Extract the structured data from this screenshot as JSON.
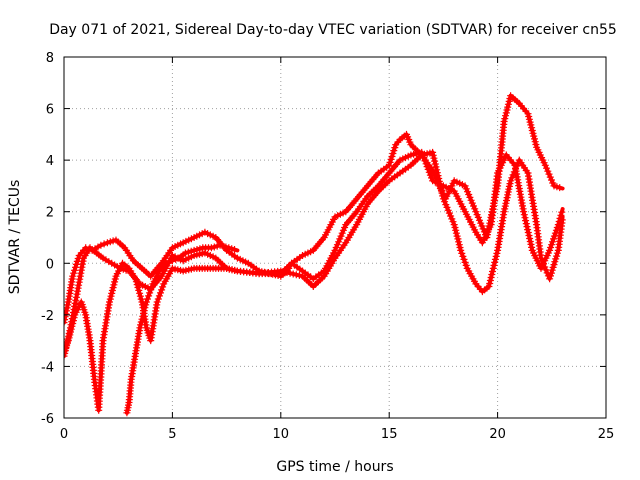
{
  "chart_data": {
    "type": "scatter",
    "title": "Day 071 of 2021, Sidereal Day-to-day VTEC variation (SDTVAR) for receiver cn55",
    "xlabel": "GPS time / hours",
    "ylabel": "SDTVAR / TECUs",
    "xlim": [
      0,
      25
    ],
    "ylim": [
      -6,
      8
    ],
    "xticks": [
      0,
      5,
      10,
      15,
      20,
      25
    ],
    "yticks": [
      -6,
      -4,
      -2,
      0,
      2,
      4,
      6,
      8
    ],
    "grid": true,
    "color": "#ff0000",
    "marker": "+",
    "series": [
      {
        "x": [
          0,
          0.2,
          0.4,
          0.7,
          1.0,
          1.3,
          1.7,
          2.0,
          2.4,
          2.8,
          3.2,
          3.6,
          4.0,
          4.5,
          5.0,
          5.5,
          6.0,
          6.5,
          7.0,
          7.5,
          8.0,
          8.5,
          9.0,
          9.5,
          10.0,
          10.3,
          10.5,
          11.0,
          11.5,
          12.0,
          12.5,
          13.0,
          13.5,
          14.0,
          14.5,
          15.0,
          15.3,
          15.5,
          15.8,
          16.0,
          16.5,
          17.0,
          17.3,
          17.6,
          18.0,
          18.5,
          19.0,
          19.5,
          20.0,
          20.3,
          20.6,
          21.0,
          21.4,
          21.8,
          22.2,
          22.6,
          23.0
        ],
        "y": [
          -2.3,
          -1.5,
          -0.5,
          0.3,
          0.6,
          0.5,
          0.7,
          0.8,
          0.9,
          0.6,
          0.1,
          -0.2,
          -0.5,
          0.0,
          0.6,
          0.8,
          1.0,
          1.2,
          1.0,
          0.5,
          0.2,
          0.0,
          -0.3,
          -0.4,
          -0.5,
          -0.3,
          0.0,
          0.3,
          0.5,
          1.0,
          1.8,
          2.0,
          2.5,
          3.0,
          3.5,
          3.8,
          4.6,
          4.8,
          5.0,
          4.6,
          4.2,
          3.6,
          3.0,
          2.5,
          3.2,
          3.0,
          2.0,
          1.0,
          3.0,
          5.5,
          6.5,
          6.2,
          5.8,
          4.5,
          3.8,
          3.0,
          2.9
        ]
      },
      {
        "x": [
          0,
          0.3,
          0.6,
          0.9,
          1.2,
          1.5,
          1.8,
          2.2,
          2.6,
          3.0,
          3.5,
          4.0,
          4.5,
          5.0,
          5.5,
          6.0,
          6.5,
          7.0,
          7.5,
          8.0,
          9.0,
          10.0,
          10.5,
          11.0,
          11.5,
          12.0,
          12.5,
          13.0,
          13.5,
          14.0,
          14.5,
          15.0,
          15.5,
          16.0,
          16.5,
          17.0,
          17.5,
          18.0,
          18.5,
          19.0,
          19.3,
          19.7,
          20.0,
          20.4,
          20.8,
          21.2,
          21.6,
          22.0,
          22.4,
          22.8,
          23.0
        ],
        "y": [
          -3.6,
          -2.5,
          -1.2,
          0.2,
          0.6,
          0.4,
          0.2,
          0.0,
          -0.2,
          -0.3,
          -0.8,
          -1.0,
          -0.5,
          0.3,
          0.1,
          0.3,
          0.4,
          0.2,
          -0.2,
          -0.3,
          -0.4,
          -0.4,
          0.0,
          -0.3,
          -0.6,
          -0.3,
          0.5,
          1.5,
          2.0,
          2.6,
          3.0,
          3.5,
          4.0,
          4.2,
          4.3,
          3.2,
          3.0,
          2.8,
          2.0,
          1.2,
          0.8,
          1.5,
          3.5,
          4.2,
          3.8,
          2.0,
          0.5,
          -0.2,
          0.5,
          1.5,
          2.1
        ]
      },
      {
        "x": [
          0,
          0.2,
          0.5,
          0.8,
          1.0,
          1.2,
          1.4,
          1.6,
          1.8,
          2.1,
          2.4,
          2.7,
          3.0,
          3.3,
          3.6,
          3.8,
          4.0,
          4.3,
          4.6,
          5.0,
          5.5,
          6.0,
          6.5,
          7.0,
          7.5,
          8.0,
          9.0,
          10.0,
          11.0,
          11.5,
          12.0,
          12.5,
          13.0,
          13.5,
          14.0,
          14.5,
          15.0,
          15.5,
          16.0,
          16.5,
          17.0,
          17.5,
          18.0,
          18.3,
          18.6,
          19.0,
          19.3,
          19.6,
          20.0,
          20.3,
          20.6,
          21.0,
          21.4,
          21.8,
          22.0,
          22.4,
          22.8,
          23.0
        ],
        "y": [
          -3.5,
          -3.0,
          -2.0,
          -1.5,
          -2.0,
          -3.0,
          -4.5,
          -5.7,
          -3.0,
          -1.5,
          -0.5,
          0.0,
          -0.2,
          -0.6,
          -1.5,
          -2.5,
          -3.0,
          -1.5,
          -0.8,
          -0.2,
          -0.3,
          -0.2,
          -0.2,
          -0.2,
          -0.2,
          -0.3,
          -0.4,
          -0.3,
          -0.5,
          -0.9,
          -0.5,
          0.2,
          0.8,
          1.5,
          2.3,
          2.8,
          3.2,
          3.5,
          3.8,
          4.2,
          4.3,
          2.5,
          1.5,
          0.5,
          -0.2,
          -0.8,
          -1.1,
          -0.9,
          0.5,
          2.0,
          3.2,
          4.0,
          3.5,
          1.5,
          0.2,
          -0.6,
          0.5,
          1.8
        ]
      },
      {
        "x": [
          2.9,
          3.0,
          3.1,
          3.3,
          3.5,
          3.8,
          4.1,
          4.4,
          4.7,
          5.0,
          5.3,
          5.6,
          6.0,
          6.4,
          6.8,
          7.2,
          7.6,
          8.0
        ],
        "y": [
          -5.8,
          -5.4,
          -4.5,
          -3.5,
          -2.5,
          -1.5,
          -0.8,
          -0.3,
          0.0,
          0.1,
          0.2,
          0.4,
          0.5,
          0.6,
          0.6,
          0.7,
          0.6,
          0.5
        ]
      }
    ]
  }
}
